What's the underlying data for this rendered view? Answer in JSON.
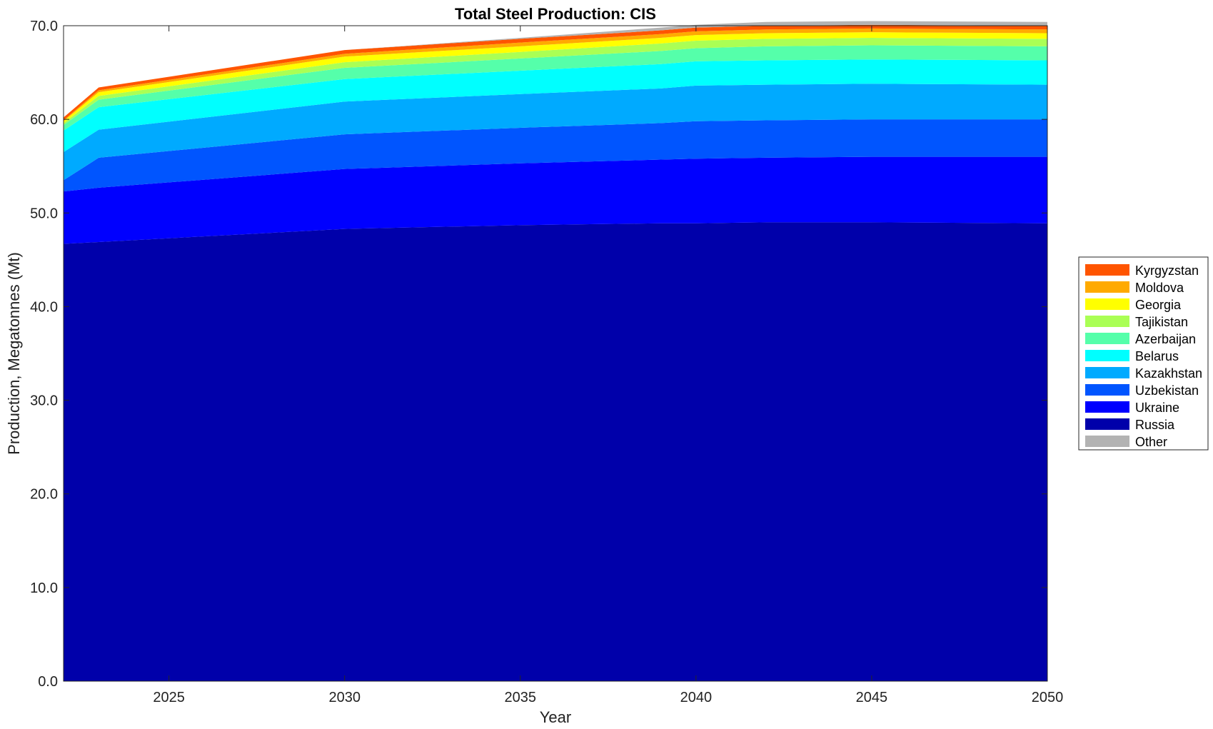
{
  "chart_data": {
    "type": "area",
    "stacked": true,
    "title": "Total Steel Production: CIS",
    "xlabel": "Year",
    "ylabel": "Production, Megatonnes (Mt)",
    "xlim": [
      2022,
      2050
    ],
    "ylim": [
      0,
      70
    ],
    "x_ticks": [
      2025,
      2030,
      2035,
      2040,
      2045,
      2050
    ],
    "y_ticks": [
      "0.0",
      "10.0",
      "20.0",
      "30.0",
      "40.0",
      "50.0",
      "60.0",
      "70.0"
    ],
    "grid": false,
    "legend_position": "right",
    "x": [
      2022,
      2023,
      2030,
      2035,
      2039,
      2040,
      2042,
      2045,
      2050
    ],
    "series": [
      {
        "name": "Russia",
        "color": "#0000AA",
        "values": [
          46.7,
          46.9,
          48.3,
          48.7,
          48.9,
          48.9,
          49.0,
          49.0,
          48.9
        ]
      },
      {
        "name": "Ukraine",
        "color": "#0000FF",
        "values": [
          5.6,
          5.8,
          6.4,
          6.6,
          6.8,
          6.9,
          6.9,
          7.0,
          7.1
        ]
      },
      {
        "name": "Uzbekistan",
        "color": "#0055FF",
        "values": [
          1.2,
          3.2,
          3.7,
          3.8,
          3.9,
          4.0,
          4.0,
          4.0,
          4.0
        ]
      },
      {
        "name": "Kazakhstan",
        "color": "#00AAFF",
        "values": [
          3.0,
          3.0,
          3.5,
          3.6,
          3.7,
          3.8,
          3.8,
          3.8,
          3.7
        ]
      },
      {
        "name": "Belarus",
        "color": "#00FFFF",
        "values": [
          2.3,
          2.4,
          2.4,
          2.5,
          2.6,
          2.6,
          2.6,
          2.6,
          2.6
        ]
      },
      {
        "name": "Azerbaijan",
        "color": "#55FFAA",
        "values": [
          0.6,
          0.8,
          1.2,
          1.3,
          1.4,
          1.4,
          1.5,
          1.5,
          1.5
        ]
      },
      {
        "name": "Tajikistan",
        "color": "#AAFF55",
        "values": [
          0.2,
          0.4,
          0.6,
          0.7,
          0.8,
          0.8,
          0.8,
          0.8,
          0.8
        ]
      },
      {
        "name": "Georgia",
        "color": "#FFFF00",
        "values": [
          0.2,
          0.4,
          0.6,
          0.6,
          0.6,
          0.6,
          0.6,
          0.6,
          0.6
        ]
      },
      {
        "name": "Moldova",
        "color": "#FFAA00",
        "values": [
          0.1,
          0.2,
          0.3,
          0.4,
          0.4,
          0.4,
          0.4,
          0.4,
          0.4
        ]
      },
      {
        "name": "Kyrgyzstan",
        "color": "#FF5500",
        "values": [
          0.3,
          0.3,
          0.4,
          0.4,
          0.4,
          0.4,
          0.4,
          0.4,
          0.4
        ]
      },
      {
        "name": "Other",
        "color": "#B3B3B3",
        "values": [
          0.0,
          0.0,
          0.0,
          0.1,
          0.3,
          0.3,
          0.4,
          0.4,
          0.4
        ]
      }
    ],
    "legend_order": [
      "Kyrgyzstan",
      "Moldova",
      "Georgia",
      "Tajikistan",
      "Azerbaijan",
      "Belarus",
      "Kazakhstan",
      "Uzbekistan",
      "Ukraine",
      "Russia",
      "Other"
    ]
  }
}
